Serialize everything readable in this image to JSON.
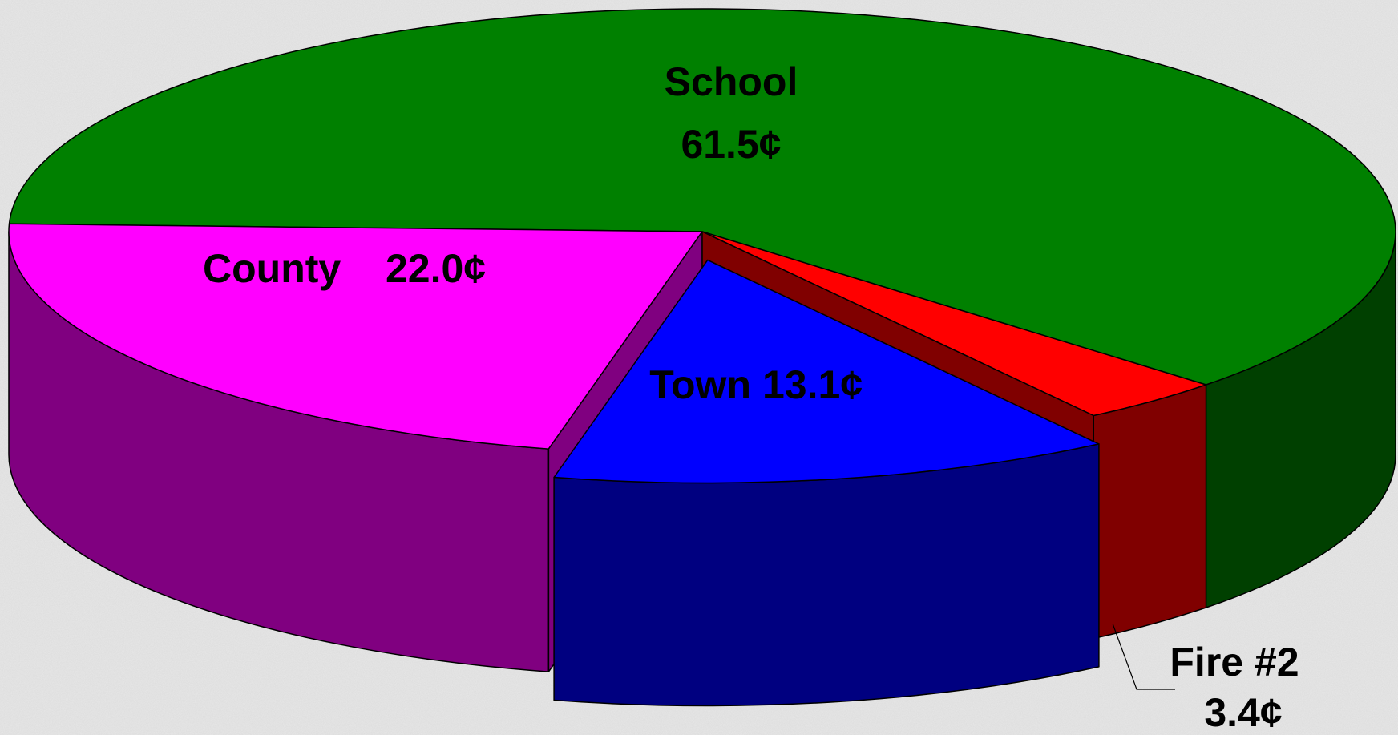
{
  "chart_data": {
    "type": "pie3d",
    "categories": [
      "School",
      "County",
      "Town",
      "Fire #2"
    ],
    "values": [
      61.5,
      22.0,
      13.1,
      3.4
    ],
    "value_labels": [
      "61.5¢",
      "22.0¢",
      "13.1¢",
      "3.4¢"
    ],
    "colors": [
      "#008000",
      "#ff00ff",
      "#0000ff",
      "#ff0000"
    ],
    "side_colors": [
      "#004000",
      "#800080",
      "#000080",
      "#800000"
    ],
    "explode": [
      0,
      0,
      1,
      0
    ]
  }
}
